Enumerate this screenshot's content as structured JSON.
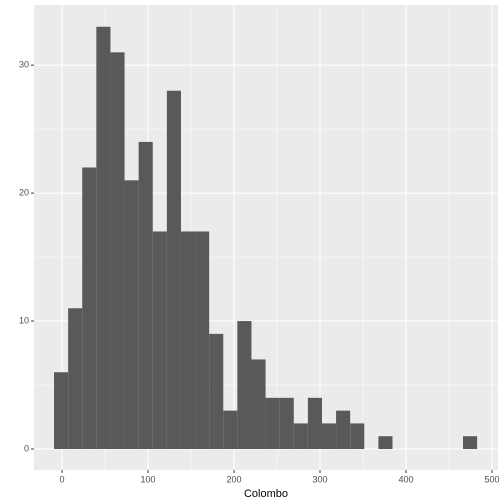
{
  "chart_data": {
    "type": "histogram",
    "x_label": "Colombo",
    "bins": [
      -9.3,
      7.1,
      23.5,
      39.9,
      56.3,
      72.7,
      89.1,
      105.5,
      121.9,
      138.3,
      154.7,
      171.1,
      187.5,
      203.9,
      220.3,
      236.7,
      253.1,
      269.5,
      285.9,
      302.3,
      318.7,
      335.1,
      351.5,
      367.9,
      384.3,
      400.7,
      417.1,
      433.5,
      449.9,
      466.3,
      482.7
    ],
    "values": [
      6,
      11,
      22,
      33,
      31,
      21,
      24,
      17,
      28,
      17,
      17,
      9,
      3,
      10,
      7,
      4,
      4,
      2,
      4,
      2,
      3,
      2,
      0,
      1,
      0,
      0,
      0,
      0,
      0,
      1
    ],
    "color": "#595959",
    "xlim": [
      -32.6,
      507
    ],
    "ylim": [
      -1.64,
      34.7
    ],
    "xticks": [
      0,
      100,
      200,
      300,
      400,
      500
    ],
    "yticks": [
      0,
      10,
      20,
      30
    ],
    "grid": true
  }
}
